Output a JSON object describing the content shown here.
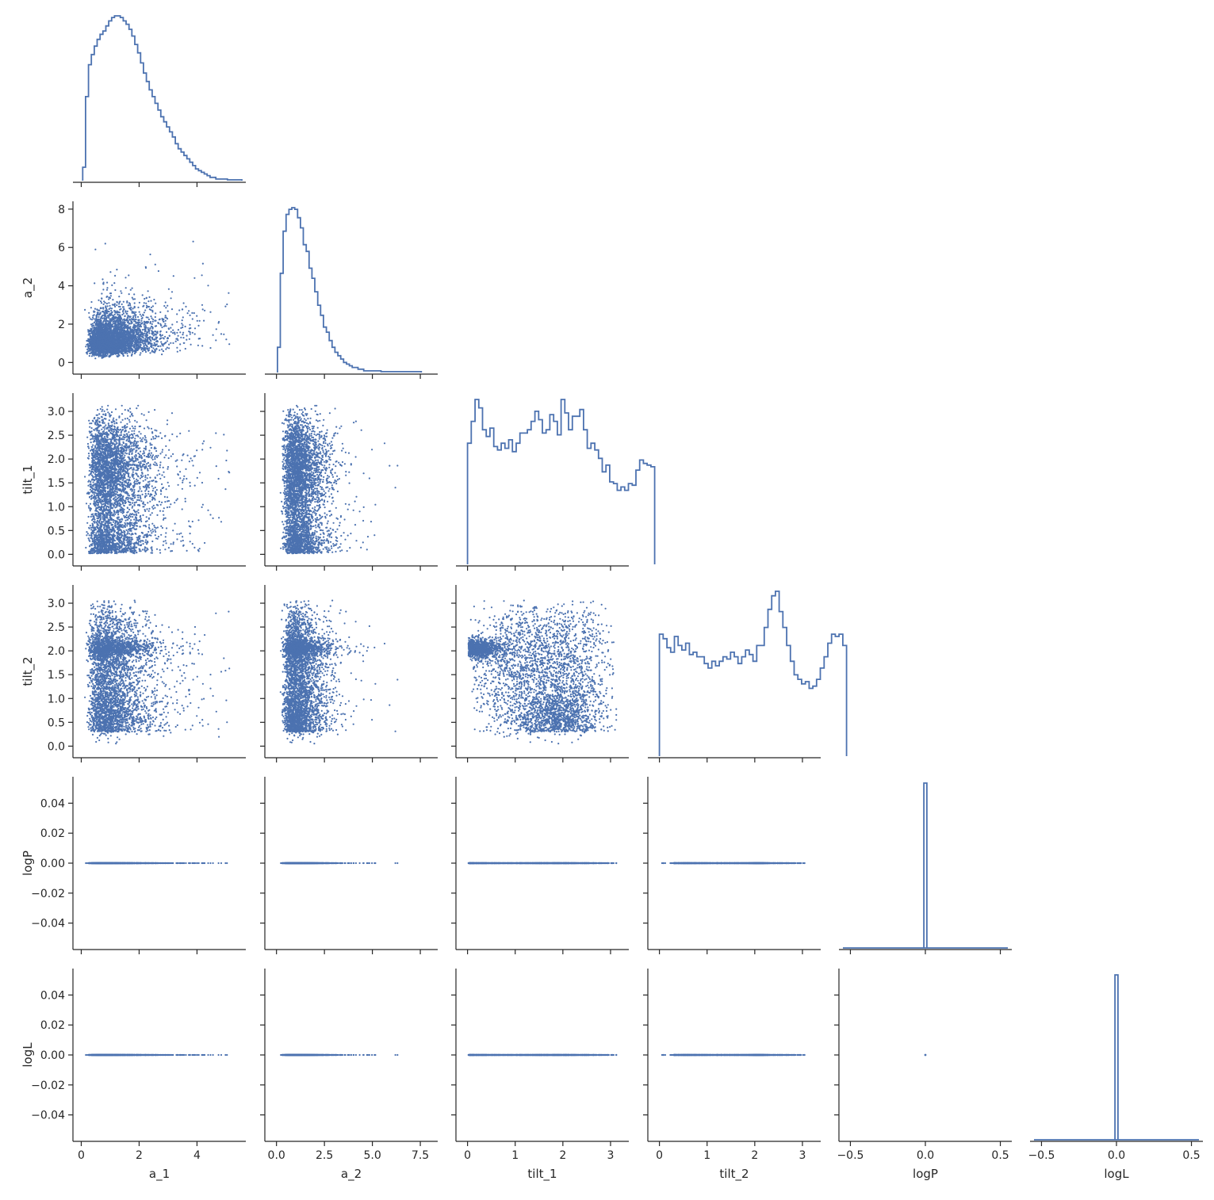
{
  "chart_data": {
    "type": "scatter",
    "kind": "corner pair plot (lower triangle scatter, diagonal step histograms)",
    "color": "#4c72b0",
    "grid": false,
    "legend": "none",
    "variables": [
      {
        "key": "a_1",
        "label": "a_1",
        "range": [
          -0.15,
          5.55
        ],
        "ticks": [
          0,
          2,
          4
        ],
        "tick_labels": [
          "0",
          "2",
          "4"
        ],
        "y_ticks": [],
        "y_tick_labels": []
      },
      {
        "key": "a_2",
        "label": "a_2",
        "range": [
          -0.4,
          8.2
        ],
        "ticks": [
          0,
          2.5,
          5.0,
          7.5
        ],
        "tick_labels": [
          "0.0",
          "2.5",
          "5.0",
          "7.5"
        ],
        "y_ticks": [
          0,
          2,
          4,
          6,
          8
        ],
        "y_tick_labels": [
          "0",
          "2",
          "4",
          "6",
          "8"
        ]
      },
      {
        "key": "tilt_1",
        "label": "tilt_1",
        "range": [
          -0.16,
          3.3
        ],
        "ticks": [
          0,
          1,
          2,
          3
        ],
        "tick_labels": [
          "0",
          "1",
          "2",
          "3"
        ],
        "y_ticks": [
          0,
          0.5,
          1.0,
          1.5,
          2.0,
          2.5,
          3.0
        ],
        "y_tick_labels": [
          "0.0",
          "0.5",
          "1.0",
          "1.5",
          "2.0",
          "2.5",
          "3.0"
        ]
      },
      {
        "key": "tilt_2",
        "label": "tilt_2",
        "range": [
          -0.16,
          3.3
        ],
        "ticks": [
          0,
          1,
          2,
          3
        ],
        "tick_labels": [
          "0",
          "1",
          "2",
          "3"
        ],
        "y_ticks": [
          0,
          0.5,
          1.0,
          1.5,
          2.0,
          2.5,
          3.0
        ],
        "y_tick_labels": [
          "0.0",
          "0.5",
          "1.0",
          "1.5",
          "2.0",
          "2.5",
          "3.0"
        ]
      },
      {
        "key": "logP",
        "label": "logP",
        "range": [
          -0.55,
          0.55
        ],
        "ticks": [
          -0.5,
          0.0,
          0.5
        ],
        "tick_labels": [
          "−0.5",
          "0.0",
          "0.5"
        ],
        "y_range": [
          -0.055,
          0.055
        ],
        "y_ticks": [
          -0.04,
          -0.02,
          0.0,
          0.02,
          0.04
        ],
        "y_tick_labels": [
          "−0.04",
          "−0.02",
          "0.00",
          "0.02",
          "0.04"
        ]
      },
      {
        "key": "logL",
        "label": "logL",
        "range": [
          -0.55,
          0.55
        ],
        "ticks": [
          -0.5,
          0.0,
          0.5
        ],
        "tick_labels": [
          "−0.5",
          "0.0",
          "0.5"
        ],
        "y_range": [
          -0.055,
          0.055
        ],
        "y_ticks": [
          -0.04,
          -0.02,
          0.0,
          0.02,
          0.04
        ],
        "y_tick_labels": [
          "−0.04",
          "−0.02",
          "0.00",
          "0.02",
          "0.04"
        ]
      }
    ],
    "histograms": {
      "a_1": {
        "edges_start": 0.05,
        "bin_width": 0.1,
        "counts": [
          8,
          50,
          69,
          75,
          80,
          84,
          87,
          89,
          92,
          95,
          97,
          98,
          98,
          97,
          95,
          93,
          90,
          86,
          81,
          76,
          70,
          64,
          59,
          54,
          50,
          46,
          42,
          38,
          35,
          32,
          29,
          26,
          22,
          19,
          17,
          15,
          13,
          11,
          9,
          7,
          6,
          5,
          4,
          3,
          2,
          2,
          1,
          1,
          1,
          1,
          0.5,
          0.5,
          0.5,
          0.5,
          0.5
        ]
      },
      "a_2": {
        "edges_start": 0.05,
        "bin_width": 0.15,
        "counts": [
          15,
          59,
          84,
          94,
          97,
          98,
          97,
          92,
          86,
          76,
          72,
          62,
          56,
          48,
          40,
          34,
          27,
          24,
          19,
          15,
          12,
          10,
          8,
          6,
          5,
          4,
          3,
          3,
          2,
          2,
          1,
          1,
          1,
          1,
          1,
          1,
          0.5,
          0.5,
          0.5,
          0.5,
          0.5,
          0.5,
          0.5,
          0.5,
          0.5,
          0.5,
          0.5,
          0.5,
          0.5,
          0.5
        ]
      },
      "tilt_1": {
        "edges_start": 0.0,
        "bin_width": 0.0785,
        "counts": [
          72,
          85,
          98,
          93,
          80,
          76,
          81,
          70,
          68,
          72,
          69,
          74,
          67,
          72,
          78,
          78,
          80,
          85,
          91,
          86,
          78,
          80,
          89,
          85,
          77,
          98,
          90,
          80,
          88,
          88,
          92,
          80,
          69,
          72,
          68,
          63,
          55,
          59,
          49,
          48,
          44,
          46,
          44,
          48,
          47,
          56,
          62,
          60,
          59,
          58
        ]
      },
      "tilt_2": {
        "edges_start": 0.0,
        "bin_width": 0.0785,
        "counts": [
          54,
          52,
          48,
          46,
          53,
          49,
          47,
          50,
          45,
          46,
          44,
          44,
          41,
          39,
          42,
          40,
          42,
          44,
          43,
          46,
          44,
          41,
          44,
          47,
          45,
          42,
          49,
          49,
          57,
          65,
          71,
          73,
          64,
          57,
          49,
          42,
          36,
          34,
          32,
          33,
          30,
          31,
          34,
          39,
          44,
          50,
          54,
          53,
          54,
          49
        ]
      },
      "logP": {
        "edges_start": -0.01,
        "bin_width": 0.02,
        "counts": [
          100
        ]
      },
      "logL": {
        "edges_start": -0.01,
        "bin_width": 0.02,
        "counts": [
          100
        ]
      }
    }
  }
}
